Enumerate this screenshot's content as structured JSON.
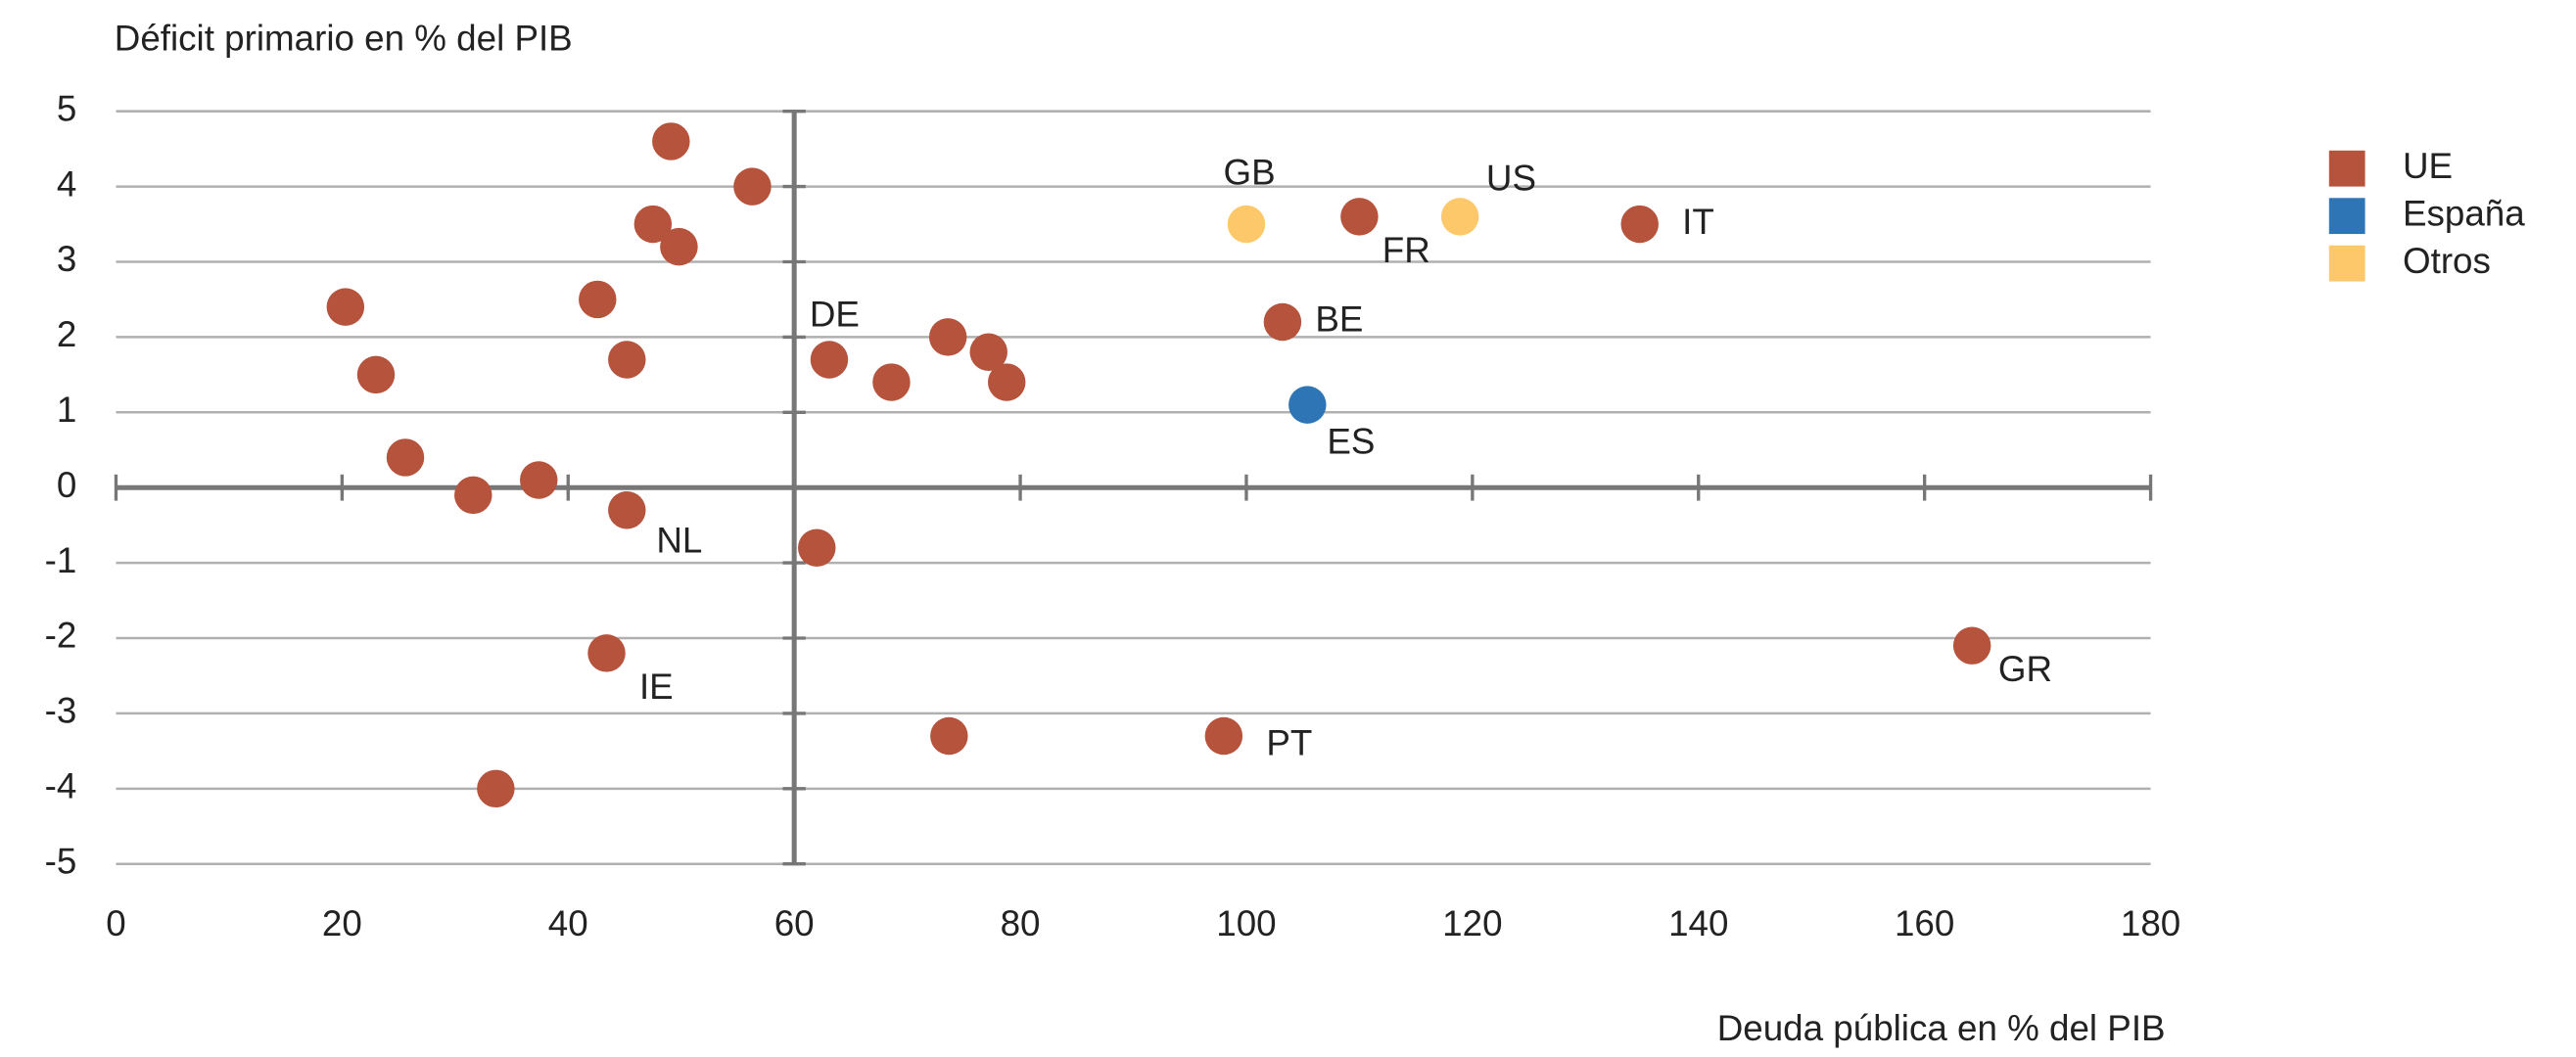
{
  "chart_data": {
    "type": "scatter",
    "title": "Déficit primario en % del PIB",
    "x_label": "Deuda pública en % del PIB",
    "xlim": [
      0,
      180
    ],
    "xticks": [
      0,
      20,
      40,
      60,
      80,
      100,
      120,
      140,
      160,
      180
    ],
    "ylim": [
      -5,
      5
    ],
    "yticks": [
      -5,
      -4,
      -3,
      -2,
      -1,
      0,
      1,
      2,
      3,
      4,
      5
    ],
    "grid": true,
    "x_axis_crosses_y": 0,
    "y_axis_crosses_x": 60,
    "legend": "right",
    "series": [
      {
        "name": "UE",
        "color": "#b5533c",
        "x": [
          20.3,
          23,
          25.6,
          31.6,
          33.6,
          37.4,
          42.6,
          43.4,
          45.2,
          45.2,
          47.5,
          49.1,
          49.8,
          56.3,
          62,
          63.1,
          68.6,
          73.6,
          73.7,
          77.2,
          78.8,
          98,
          103.2,
          110,
          134.8,
          164.2
        ],
        "values": [
          2.4,
          1.5,
          0.4,
          -0.1,
          -4,
          0.1,
          2.5,
          -2.2,
          1.7,
          -0.3,
          3.5,
          4.6,
          3.2,
          4.0,
          -0.8,
          1.7,
          1.4,
          2.0,
          -3.3,
          1.8,
          1.4,
          -3.3,
          2.2,
          3.6,
          3.5,
          -2.1
        ],
        "labels": [
          null,
          null,
          null,
          null,
          null,
          null,
          null,
          "IE",
          null,
          "NL",
          null,
          null,
          null,
          null,
          null,
          "DE",
          null,
          null,
          null,
          null,
          null,
          "PT",
          "BE",
          "FR",
          "IT",
          "GR"
        ]
      },
      {
        "name": "España",
        "color": "#2e75b6",
        "x": [
          105.4
        ],
        "values": [
          1.1
        ],
        "labels": [
          "ES"
        ]
      },
      {
        "name": "Otros",
        "color": "#fdc86a",
        "x": [
          100,
          118.9
        ],
        "values": [
          3.5,
          3.6
        ],
        "labels": [
          "GB",
          "US"
        ]
      }
    ]
  }
}
